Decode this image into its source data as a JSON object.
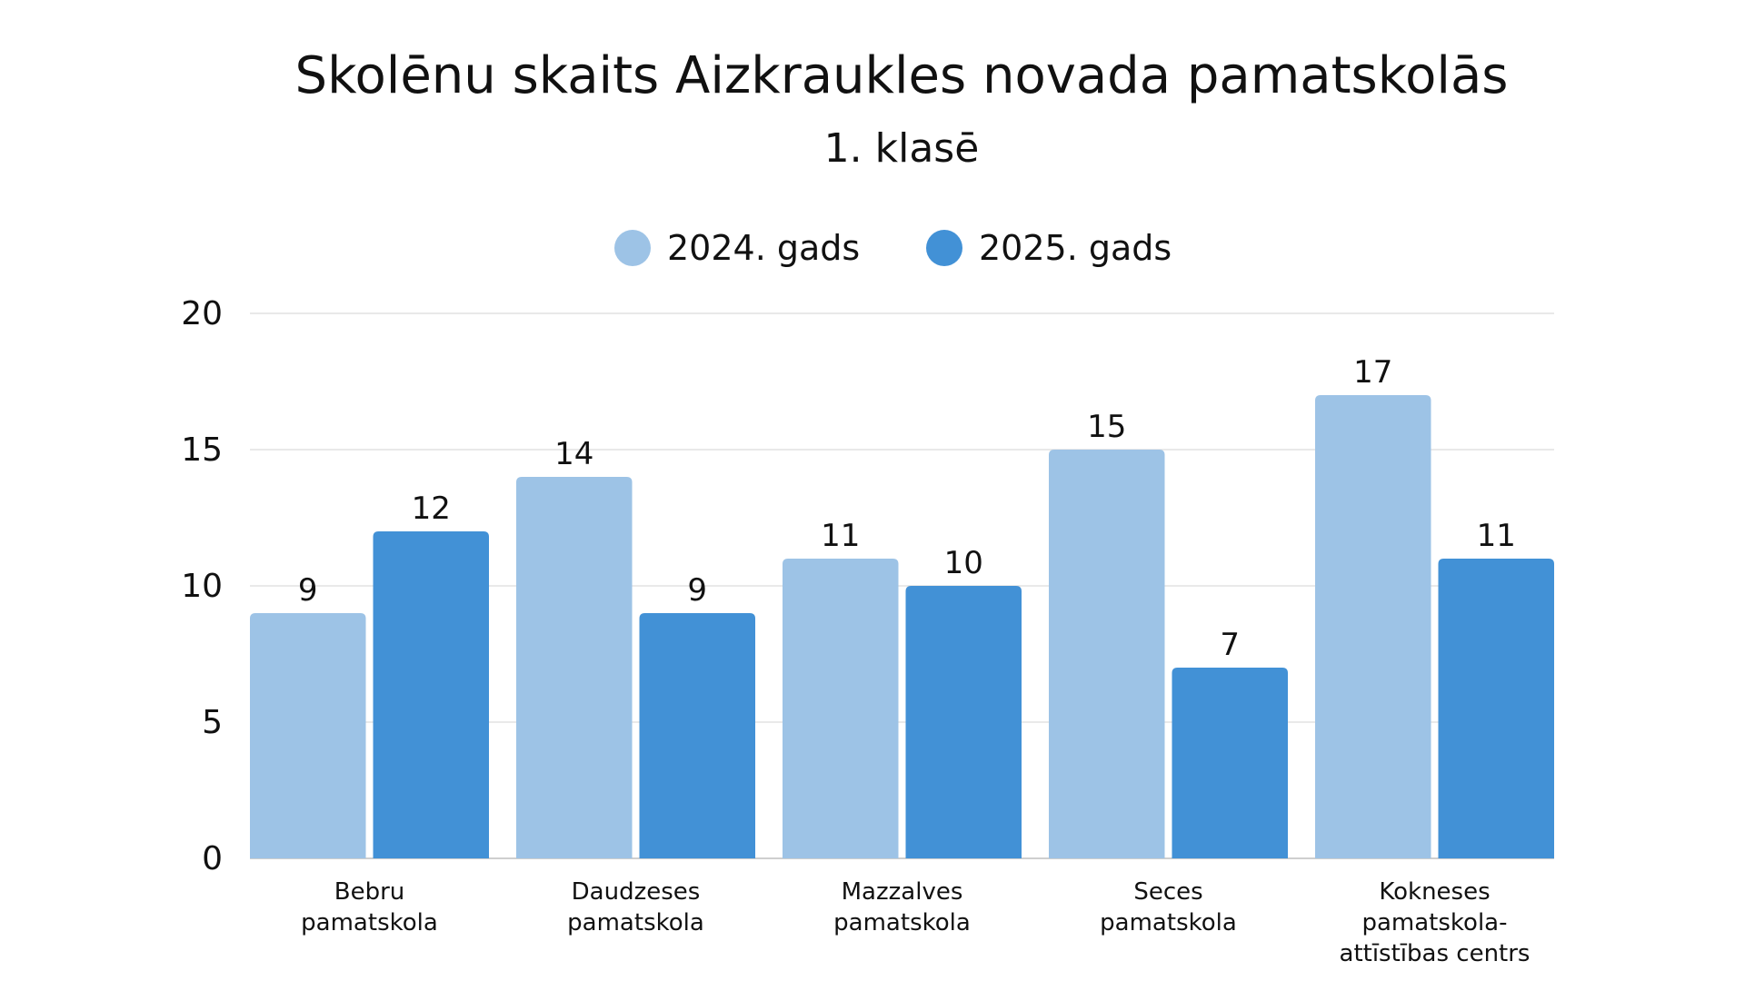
{
  "chart_data": {
    "type": "bar",
    "title": "Skolēnu skaits Aizkraukles novada pamatskolās",
    "subtitle": "1. klasē",
    "categories": [
      [
        "Bebru",
        "pamatskola"
      ],
      [
        "Daudzeses",
        "pamatskola"
      ],
      [
        "Mazzalves",
        "pamatskola"
      ],
      [
        "Seces",
        "pamatskola"
      ],
      [
        "Kokneses",
        "pamatskola-",
        "attīstības centrs"
      ]
    ],
    "series": [
      {
        "name": "2024. gads",
        "color": "#9dc3e6",
        "values": [
          9,
          14,
          11,
          15,
          17
        ]
      },
      {
        "name": "2025. gads",
        "color": "#4291d6",
        "values": [
          12,
          9,
          10,
          7,
          11
        ]
      }
    ],
    "ylim": [
      0,
      20
    ],
    "yticks": [
      0,
      5,
      10,
      15,
      20
    ],
    "grid": true,
    "legend": "top-center",
    "data_labels": true
  }
}
